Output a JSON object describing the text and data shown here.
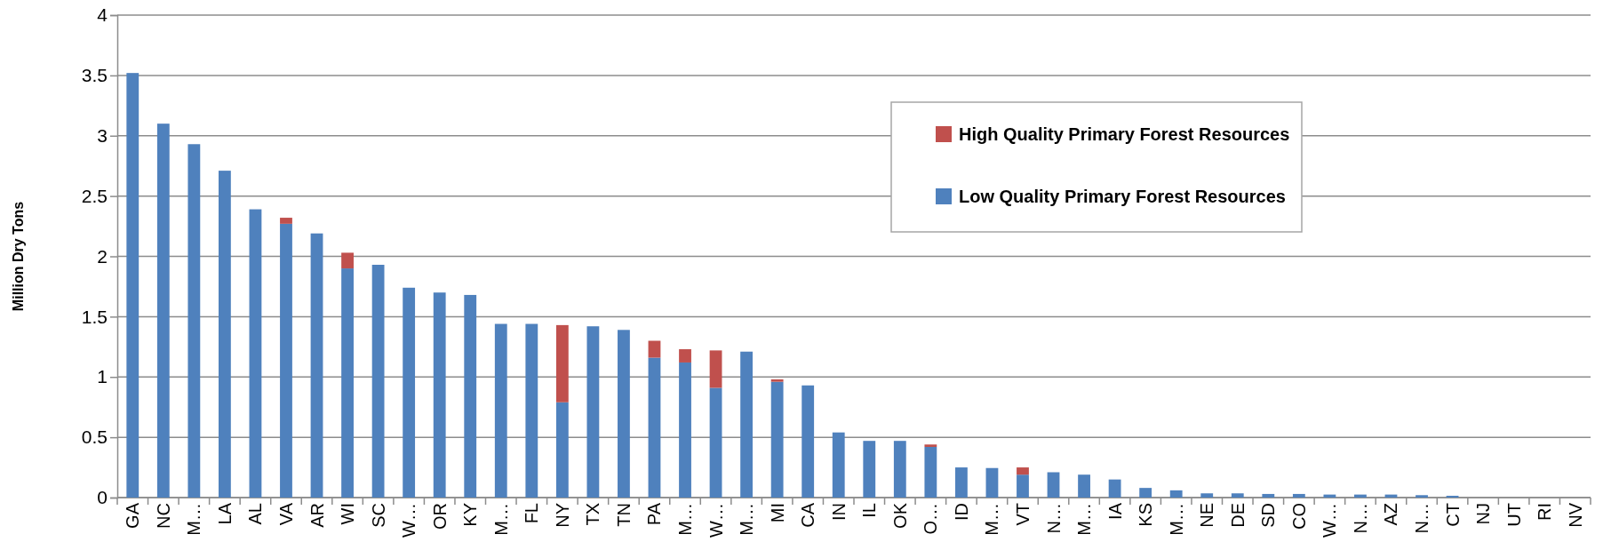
{
  "chart_data": {
    "type": "bar",
    "stacked": true,
    "ylabel": "Million Dry Tons",
    "categories": [
      "GA",
      "NC",
      "M…",
      "LA",
      "AL",
      "VA",
      "AR",
      "WI",
      "SC",
      "W…",
      "OR",
      "KY",
      "M…",
      "FL",
      "NY",
      "TX",
      "TN",
      "PA",
      "M…",
      "W…",
      "M…",
      "MI",
      "CA",
      "IN",
      "IL",
      "OK",
      "O…",
      "ID",
      "M…",
      "VT",
      "N…",
      "M…",
      "IA",
      "KS",
      "M…",
      "NE",
      "DE",
      "SD",
      "CO",
      "W…",
      "N…",
      "AZ",
      "N…",
      "CT",
      "NJ",
      "UT",
      "RI",
      "NV"
    ],
    "series": [
      {
        "name": "Low Quality Primary Forest Resources",
        "color": "#4f81bd",
        "values": [
          3.52,
          3.1,
          2.93,
          2.71,
          2.39,
          2.27,
          2.19,
          1.9,
          1.93,
          1.74,
          1.7,
          1.68,
          1.44,
          1.44,
          0.79,
          1.42,
          1.39,
          1.16,
          1.12,
          0.91,
          1.21,
          0.96,
          0.93,
          0.54,
          0.47,
          0.47,
          0.42,
          0.25,
          0.245,
          0.19,
          0.21,
          0.19,
          0.15,
          0.08,
          0.06,
          0.035,
          0.035,
          0.03,
          0.03,
          0.025,
          0.025,
          0.025,
          0.02,
          0.015,
          0,
          0,
          0,
          0
        ]
      },
      {
        "name": "High Quality Primary Forest Resources",
        "color": "#c0504d",
        "values": [
          0,
          0,
          0,
          0,
          0,
          0.05,
          0,
          0.13,
          0,
          0,
          0,
          0,
          0,
          0,
          0.64,
          0,
          0,
          0.14,
          0.11,
          0.31,
          0,
          0.02,
          0,
          0,
          0,
          0,
          0.02,
          0,
          0,
          0.06,
          0,
          0,
          0,
          0,
          0,
          0,
          0,
          0,
          0,
          0,
          0,
          0,
          0,
          0,
          0,
          0,
          0,
          0
        ]
      }
    ],
    "ylim": [
      0,
      4
    ],
    "yticks": [
      0,
      0.5,
      1,
      1.5,
      2,
      2.5,
      3,
      3.5,
      4
    ],
    "grid": "y",
    "legend": "top right"
  }
}
